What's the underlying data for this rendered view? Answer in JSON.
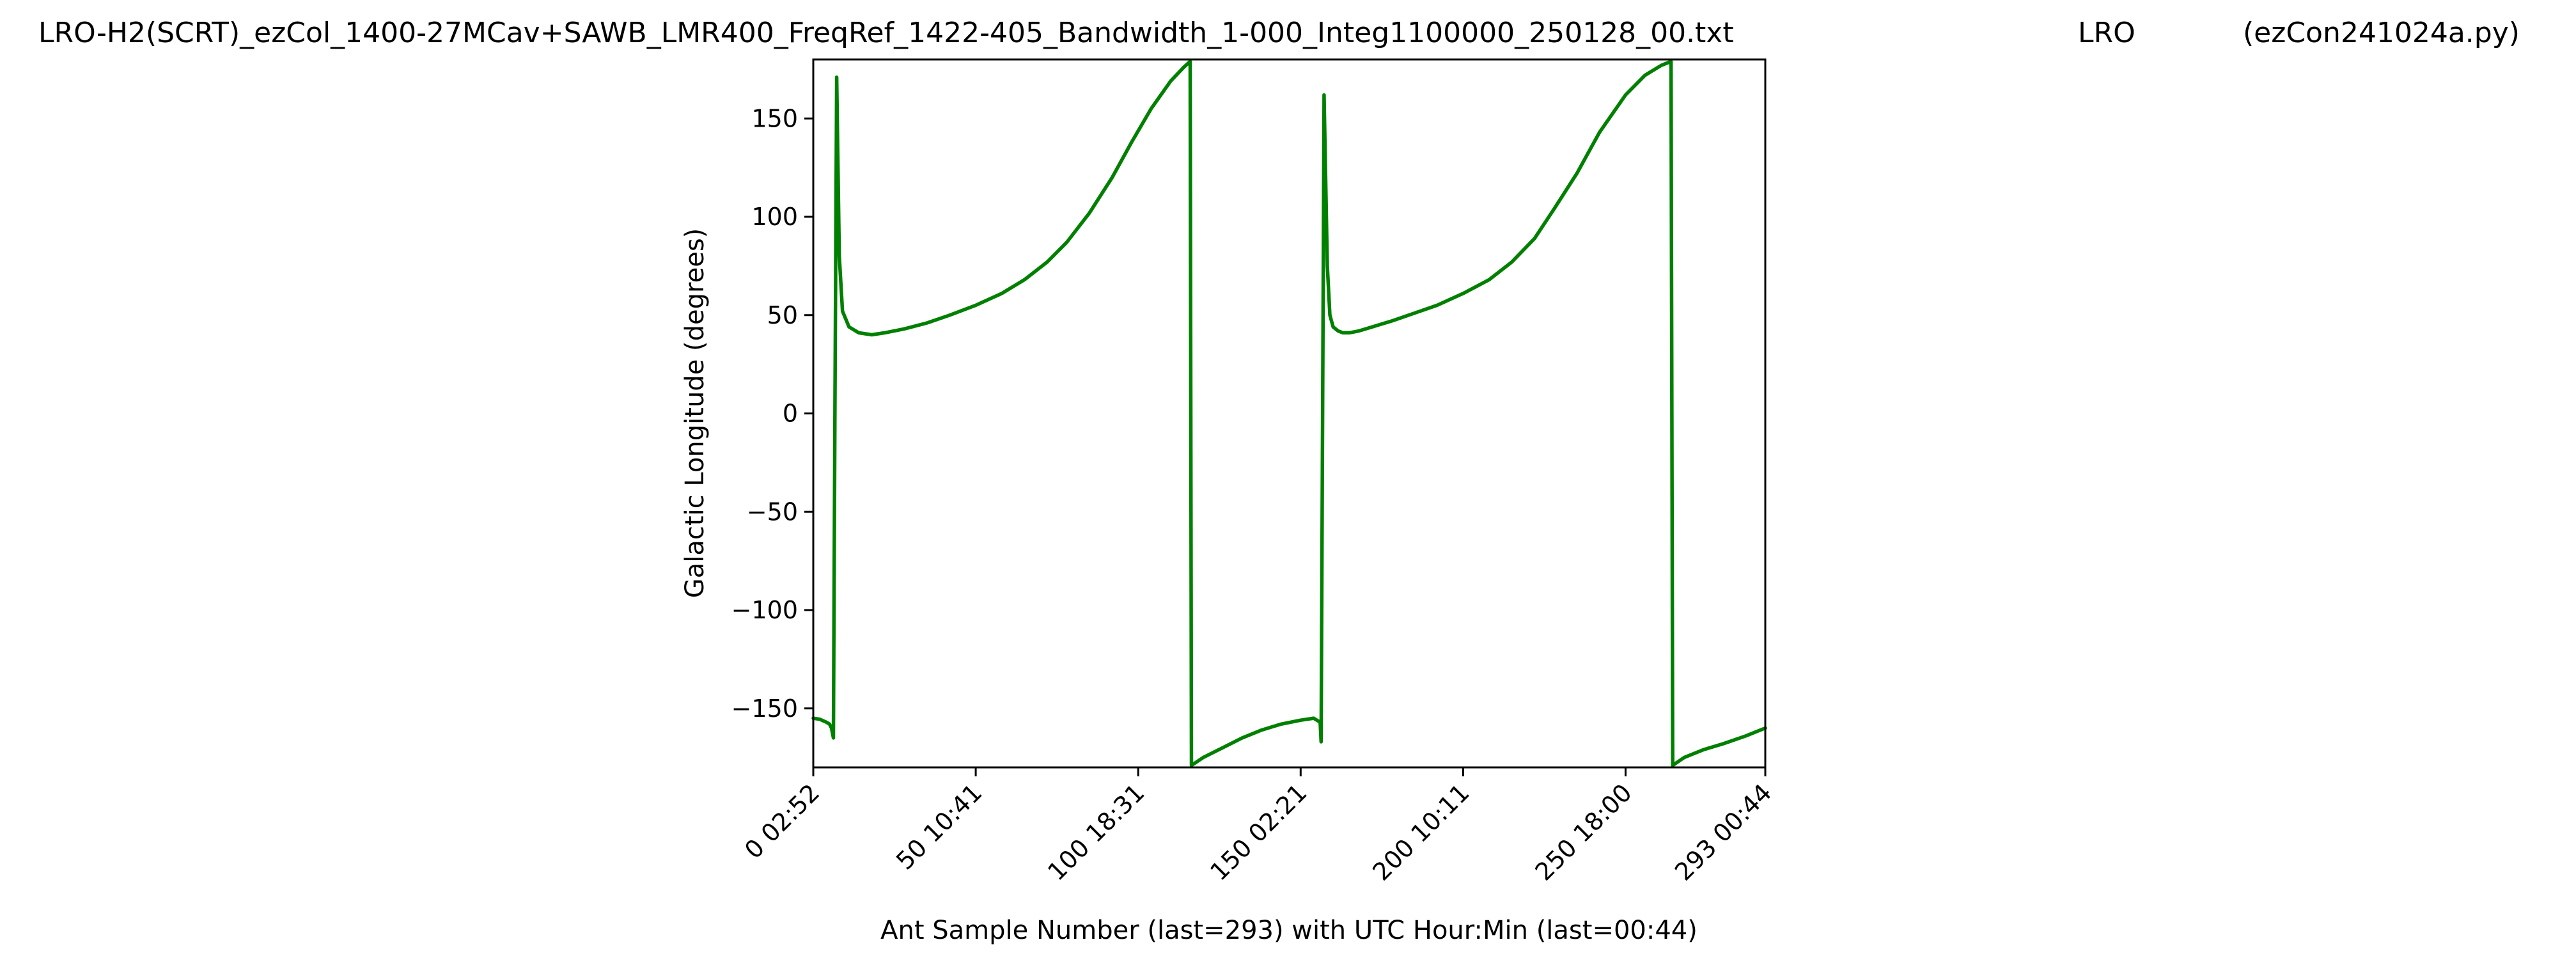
{
  "header": {
    "title_left": "LRO-H2(SCRT)_ezCol_1400-27MCav+SAWB_LMR400_FreqRef_1422-405_Bandwidth_1-000_Integ1100000_250128_00.txt",
    "title_center": "LRO",
    "title_right": "(ezCon241024a.py)"
  },
  "chart_data": {
    "type": "line",
    "title": "LRO-H2(SCRT)_ezCol_1400-27MCav+SAWB_LMR400_FreqRef_1422-405_Bandwidth_1-000_Integ1100000_250128_00.txt",
    "xlabel": "Ant Sample Number (last=293) with UTC Hour:Min (last=00:44)",
    "ylabel": "Galactic Longitude (degrees)",
    "xlim": [
      0,
      293
    ],
    "ylim": [
      -180,
      180
    ],
    "grid": false,
    "line_color": "#008000",
    "x_ticks": [
      {
        "value": 0,
        "label": "0  02:52"
      },
      {
        "value": 50,
        "label": "50  10:41"
      },
      {
        "value": 100,
        "label": "100  18:31"
      },
      {
        "value": 150,
        "label": "150  02:21"
      },
      {
        "value": 200,
        "label": "200  10:11"
      },
      {
        "value": 250,
        "label": "250  18:00"
      },
      {
        "value": 293,
        "label": "293  00:44"
      }
    ],
    "y_ticks": [
      {
        "value": 150,
        "label": "150"
      },
      {
        "value": 100,
        "label": "100"
      },
      {
        "value": 50,
        "label": "50"
      },
      {
        "value": 0,
        "label": "0"
      },
      {
        "value": -50,
        "label": "−50"
      },
      {
        "value": -100,
        "label": "−100"
      },
      {
        "value": -150,
        "label": "−150"
      }
    ],
    "series": [
      {
        "color": "#008000",
        "x": [
          0,
          2,
          4,
          5,
          5.6,
          6.2,
          6.7,
          7.2,
          8,
          9,
          11,
          14,
          18,
          22,
          28,
          35,
          42,
          50,
          58,
          65,
          72,
          78,
          85,
          92,
          98,
          104,
          110,
          114,
          116,
          116.4,
          120,
          126,
          132,
          138,
          144,
          150,
          154,
          156,
          156.3,
          157.2,
          158.2,
          159,
          160,
          161.5,
          163,
          165,
          168,
          172,
          178,
          185,
          192,
          200,
          208,
          215,
          222,
          228,
          235,
          242,
          250,
          256,
          261,
          264,
          264.5,
          268,
          274,
          280,
          287,
          293
        ],
        "y": [
          -155,
          -155.5,
          -157,
          -158,
          -160,
          -165,
          10,
          171,
          80,
          52,
          44,
          41,
          40,
          41,
          43,
          46,
          50,
          55,
          61,
          68,
          77,
          87,
          102,
          120,
          138,
          155,
          169,
          176,
          179,
          -179,
          -175,
          -170,
          -165,
          -161,
          -158,
          -156,
          -155,
          -157,
          -167,
          162,
          75,
          50,
          44,
          42,
          41,
          41,
          42,
          44,
          47,
          51,
          55,
          61,
          68,
          77,
          89,
          104,
          122,
          143,
          162,
          172,
          177,
          179,
          -179,
          -175,
          -171,
          -168,
          -164,
          -160
        ]
      }
    ]
  }
}
